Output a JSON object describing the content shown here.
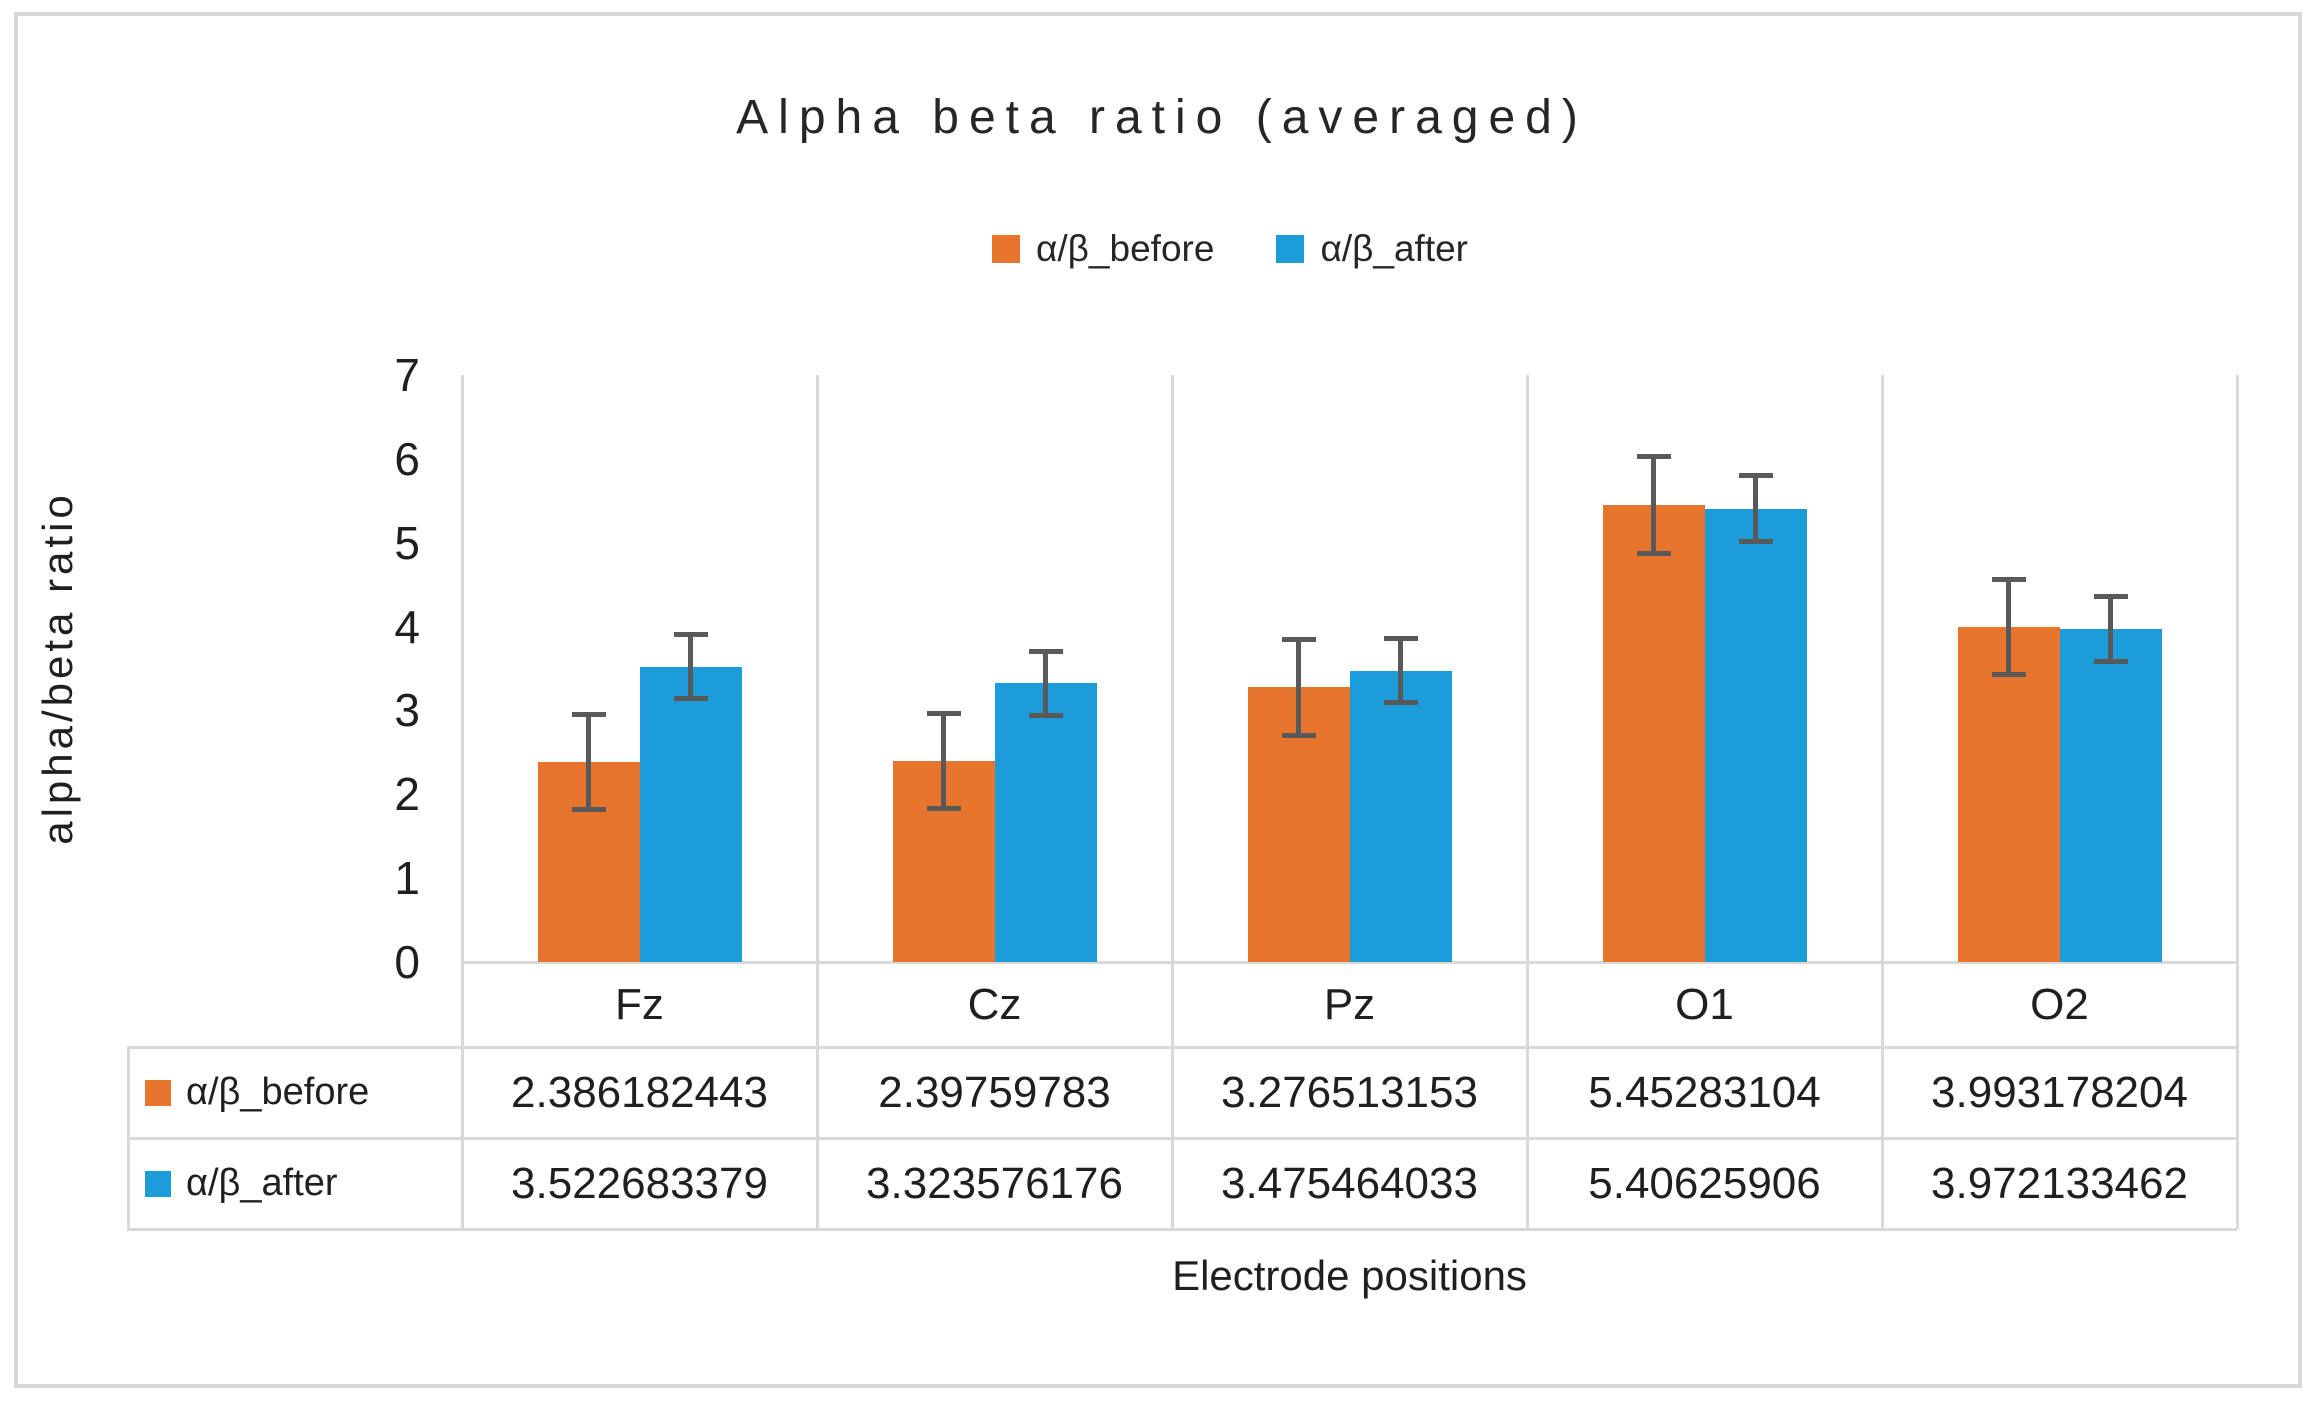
{
  "title": "Alpha beta ratio (averaged)",
  "y_axis_title": "alpha/beta ratio",
  "x_axis_title": "Electrode positions",
  "legend": {
    "items": [
      {
        "label": "α/β_before",
        "color": "#E8752E"
      },
      {
        "label": "α/β_after",
        "color": "#1C9DD9"
      }
    ]
  },
  "colors": {
    "before_orange": "#E8752E",
    "after_blue": "#1C9DD9",
    "error_bar_gray": "#595959",
    "gridline_gray": "#D9D9D9",
    "figure_border_gray": "#D8D8D8",
    "text_dark": "#262626"
  },
  "chart_data": {
    "type": "bar",
    "title": "Alpha beta ratio (averaged)",
    "xlabel": "Electrode positions",
    "ylabel": "alpha/beta ratio",
    "categories": [
      "Fz",
      "Cz",
      "Pz",
      "O1",
      "O2"
    ],
    "series": [
      {
        "name": "α/β_before",
        "color": "#E8752E",
        "values": [
          2.386182443,
          2.39759783,
          3.276513153,
          5.45283104,
          3.993178204
        ],
        "errors": [
          0.57,
          0.57,
          0.57,
          0.58,
          0.57
        ]
      },
      {
        "name": "α/β_after",
        "color": "#1C9DD9",
        "values": [
          3.522683379,
          3.323576176,
          3.475464033,
          5.40625906,
          3.972133462
        ],
        "errors": [
          0.38,
          0.38,
          0.38,
          0.39,
          0.39
        ]
      }
    ],
    "ylim": [
      0,
      7
    ],
    "y_ticks": [
      "0",
      "1",
      "2",
      "3",
      "4",
      "5",
      "6",
      "7"
    ],
    "grid": "vertical-category-separators-only",
    "legend_position": "top",
    "error_bars": "symmetric, dark gray with caps"
  },
  "table": {
    "rows": [
      {
        "label": "α/β_before",
        "color": "#E8752E",
        "values": [
          "2.386182443",
          "2.39759783",
          "3.276513153",
          "5.45283104",
          "3.993178204"
        ]
      },
      {
        "label": "α/β_after",
        "color": "#1C9DD9",
        "values": [
          "3.522683379",
          "3.323576176",
          "3.475464033",
          "5.40625906",
          "3.972133462"
        ]
      }
    ]
  }
}
